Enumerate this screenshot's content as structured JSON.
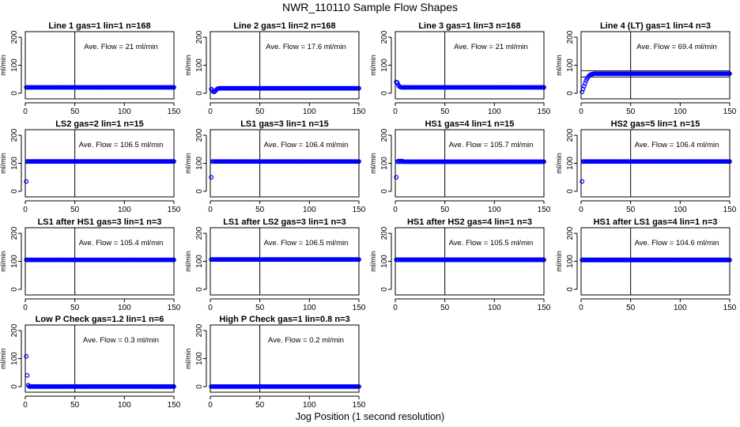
{
  "figure": {
    "title": "NWR_110110  Sample Flow Shapes",
    "xlabel": "Jog Position (1 second resolution)"
  },
  "chart_data": [
    {
      "type": "scatter",
      "title": "Line 1 gas=1 lin=1 n=168",
      "annotation": "Ave. Flow =  21  ml/min",
      "ylabel": "ml/min",
      "xlim": [
        0,
        150
      ],
      "ylim": [
        -20,
        220
      ],
      "xticks": [
        0,
        50,
        100,
        150
      ],
      "yticks": [
        0,
        100,
        200
      ],
      "vline_x": 50,
      "hlines": [],
      "series": [
        {
          "color": "#0000ff",
          "start": [],
          "level": 21
        }
      ]
    },
    {
      "type": "scatter",
      "title": "Line 2 gas=1 lin=2 n=168",
      "annotation": "Ave. Flow =  17.6  ml/min",
      "ylabel": "ml/min",
      "xlim": [
        0,
        150
      ],
      "ylim": [
        -20,
        220
      ],
      "xticks": [
        0,
        50,
        100,
        150
      ],
      "yticks": [
        0,
        100,
        200
      ],
      "vline_x": 50,
      "hlines": [],
      "series": [
        {
          "color": "#0000ff",
          "start": [
            [
              1,
              15
            ],
            [
              2,
              10
            ],
            [
              3,
              6
            ],
            [
              4,
              5
            ],
            [
              5,
              8
            ],
            [
              6,
              12
            ],
            [
              7,
              15
            ],
            [
              8,
              17
            ]
          ],
          "level": 17.6
        }
      ]
    },
    {
      "type": "scatter",
      "title": "Line 3 gas=1 lin=3 n=168",
      "annotation": "Ave. Flow =  21  ml/min",
      "ylabel": "ml/min",
      "xlim": [
        0,
        150
      ],
      "ylim": [
        -20,
        220
      ],
      "xticks": [
        0,
        50,
        100,
        150
      ],
      "yticks": [
        0,
        100,
        200
      ],
      "vline_x": 50,
      "hlines": [],
      "series": [
        {
          "color": "#0000ff",
          "start": [
            [
              1,
              40
            ],
            [
              2,
              38
            ],
            [
              3,
              30
            ],
            [
              4,
              25
            ],
            [
              5,
              22
            ]
          ],
          "level": 21
        }
      ]
    },
    {
      "type": "scatter",
      "title": "Line 4 (LT) gas=1 lin=4 n=3",
      "annotation": "Ave. Flow =  69.4  ml/min",
      "ylabel": "ml/min",
      "xlim": [
        0,
        150
      ],
      "ylim": [
        -20,
        220
      ],
      "xticks": [
        0,
        50,
        100,
        150
      ],
      "yticks": [
        0,
        100,
        200
      ],
      "vline_x": 50,
      "hlines": [
        58,
        80
      ],
      "series": [
        {
          "color": "#0000ff",
          "start": [
            [
              1,
              5
            ],
            [
              2,
              15
            ],
            [
              3,
              25
            ],
            [
              4,
              35
            ],
            [
              5,
              45
            ],
            [
              6,
              52
            ],
            [
              7,
              58
            ],
            [
              8,
              62
            ],
            [
              9,
              65
            ],
            [
              10,
              67
            ],
            [
              11,
              68
            ],
            [
              12,
              69
            ],
            [
              13,
              70
            ]
          ],
          "level": 70
        }
      ]
    },
    {
      "type": "scatter",
      "title": "LS2 gas=2 lin=1 n=15",
      "annotation": "Ave. Flow =  106.5  ml/min",
      "ylabel": "ml/min",
      "xlim": [
        0,
        150
      ],
      "ylim": [
        -20,
        220
      ],
      "xticks": [
        0,
        50,
        100,
        150
      ],
      "yticks": [
        0,
        100,
        200
      ],
      "vline_x": 50,
      "hlines": [
        100,
        112
      ],
      "series": [
        {
          "color": "#0000ff",
          "start": [
            [
              1,
              35
            ]
          ],
          "level": 106.5
        }
      ]
    },
    {
      "type": "scatter",
      "title": "LS1 gas=3 lin=1 n=15",
      "annotation": "Ave. Flow =  106.4  ml/min",
      "ylabel": "ml/min",
      "xlim": [
        0,
        150
      ],
      "ylim": [
        -20,
        220
      ],
      "xticks": [
        0,
        50,
        100,
        150
      ],
      "yticks": [
        0,
        100,
        200
      ],
      "vline_x": 50,
      "hlines": [],
      "series": [
        {
          "color": "#0000ff",
          "start": [
            [
              1,
              50
            ]
          ],
          "level": 106.4
        }
      ]
    },
    {
      "type": "scatter",
      "title": "HS1 gas=4 lin=1 n=15",
      "annotation": "Ave. Flow =  105.7  ml/min",
      "ylabel": "ml/min",
      "xlim": [
        0,
        150
      ],
      "ylim": [
        -20,
        220
      ],
      "xticks": [
        0,
        50,
        100,
        150
      ],
      "yticks": [
        0,
        100,
        200
      ],
      "vline_x": 50,
      "hlines": [],
      "series": [
        {
          "color": "#0000ff",
          "start": [
            [
              1,
              50
            ],
            [
              3,
              108
            ],
            [
              5,
              108
            ],
            [
              7,
              108
            ]
          ],
          "level": 105.7
        }
      ]
    },
    {
      "type": "scatter",
      "title": "HS2 gas=5 lin=1 n=15",
      "annotation": "Ave. Flow =  106.4  ml/min",
      "ylabel": "ml/min",
      "xlim": [
        0,
        150
      ],
      "ylim": [
        -20,
        220
      ],
      "xticks": [
        0,
        50,
        100,
        150
      ],
      "yticks": [
        0,
        100,
        200
      ],
      "vline_x": 50,
      "hlines": [
        100,
        112
      ],
      "series": [
        {
          "color": "#0000ff",
          "start": [
            [
              1,
              35
            ]
          ],
          "level": 106.4
        }
      ]
    },
    {
      "type": "scatter",
      "title": "LS1 after HS1 gas=3 lin=1 n=3",
      "annotation": "Ave. Flow =  105.4  ml/min",
      "ylabel": "ml/min",
      "xlim": [
        0,
        150
      ],
      "ylim": [
        -20,
        220
      ],
      "xticks": [
        0,
        50,
        100,
        150
      ],
      "yticks": [
        0,
        100,
        200
      ],
      "vline_x": 50,
      "hlines": [],
      "series": [
        {
          "color": "#0000ff",
          "start": [],
          "level": 105.4
        }
      ]
    },
    {
      "type": "scatter",
      "title": "LS1 after LS2 gas=3 lin=1 n=3",
      "annotation": "Ave. Flow =  106.5  ml/min",
      "ylabel": "ml/min",
      "xlim": [
        0,
        150
      ],
      "ylim": [
        -20,
        220
      ],
      "xticks": [
        0,
        50,
        100,
        150
      ],
      "yticks": [
        0,
        100,
        200
      ],
      "vline_x": 50,
      "hlines": [],
      "series": [
        {
          "color": "#0000ff",
          "start": [],
          "level": 106.5
        }
      ]
    },
    {
      "type": "scatter",
      "title": "HS1 after HS2 gas=4 lin=1 n=3",
      "annotation": "Ave. Flow =  105.5  ml/min",
      "ylabel": "ml/min",
      "xlim": [
        0,
        150
      ],
      "ylim": [
        -20,
        220
      ],
      "xticks": [
        0,
        50,
        100,
        150
      ],
      "yticks": [
        0,
        100,
        200
      ],
      "vline_x": 50,
      "hlines": [
        100,
        112
      ],
      "series": [
        {
          "color": "#0000ff",
          "start": [],
          "level": 105.5
        }
      ]
    },
    {
      "type": "scatter",
      "title": "HS1 after LS1 gas=4 lin=1 n=3",
      "annotation": "Ave. Flow =  104.6  ml/min",
      "ylabel": "ml/min",
      "xlim": [
        0,
        150
      ],
      "ylim": [
        -20,
        220
      ],
      "xticks": [
        0,
        50,
        100,
        150
      ],
      "yticks": [
        0,
        100,
        200
      ],
      "vline_x": 50,
      "hlines": [
        100,
        112
      ],
      "series": [
        {
          "color": "#0000ff",
          "start": [],
          "level": 104.6
        }
      ]
    },
    {
      "type": "scatter",
      "title": "Low P Check gas=1.2 lin=1 n=6",
      "annotation": "Ave. Flow =  0.3  ml/min",
      "ylabel": "ml/min",
      "xlim": [
        0,
        150
      ],
      "ylim": [
        -20,
        220
      ],
      "xticks": [
        0,
        50,
        100,
        150
      ],
      "yticks": [
        0,
        100,
        200
      ],
      "vline_x": 50,
      "hlines": [],
      "series": [
        {
          "color": "#0000ff",
          "start": [
            [
              1,
              108
            ],
            [
              2,
              40
            ],
            [
              3,
              5
            ]
          ],
          "level": 0.3
        }
      ]
    },
    {
      "type": "scatter",
      "title": "High P Check gas=1 lin=0.8 n=3",
      "annotation": "Ave. Flow =  0.2  ml/min",
      "ylabel": "ml/min",
      "xlim": [
        0,
        150
      ],
      "ylim": [
        -20,
        220
      ],
      "xticks": [
        0,
        50,
        100,
        150
      ],
      "yticks": [
        0,
        100,
        200
      ],
      "vline_x": 50,
      "hlines": [],
      "series": [
        {
          "color": "#0000ff",
          "start": [],
          "level": 0.2
        }
      ]
    }
  ]
}
